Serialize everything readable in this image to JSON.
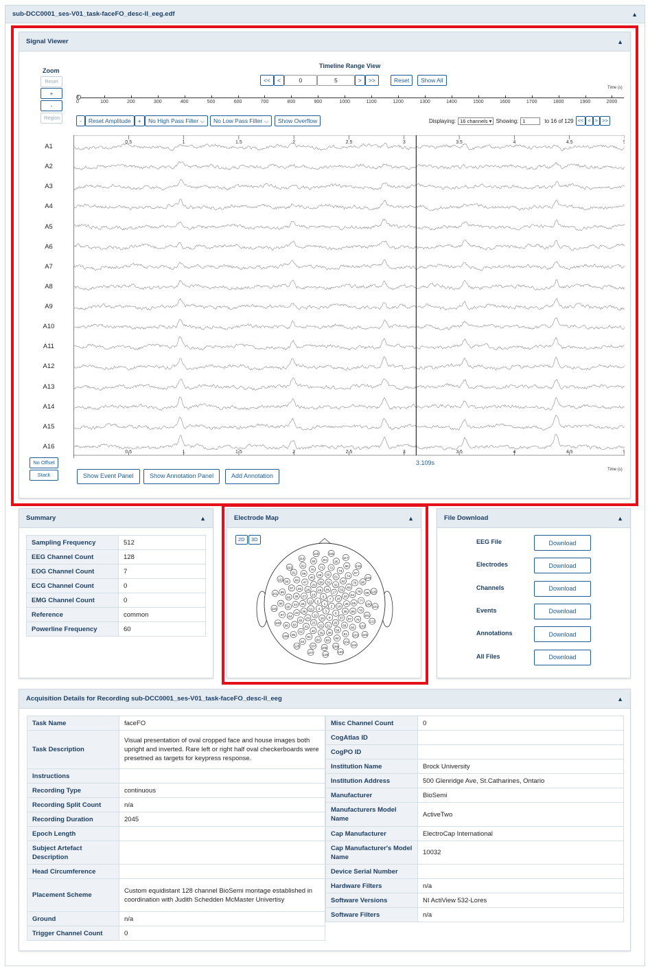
{
  "file_title": "sub-DCC0001_ses-V01_task-faceFO_desc-ll_eeg.edf",
  "signal_viewer": {
    "title": "Signal Viewer",
    "zoom": {
      "label": "Zoom",
      "reset": "Reset",
      "plus": "+",
      "minus": "-",
      "region": "Region"
    },
    "timeline": {
      "label": "Timeline Range View",
      "first": "<<",
      "prev": "<",
      "start": "0",
      "end": "5",
      "next": ">",
      "last": ">>",
      "reset": "Reset",
      "show_all": "Show All",
      "axis_label": "Time (s)",
      "ticks": [
        "0",
        "100",
        "200",
        "300",
        "400",
        "500",
        "600",
        "700",
        "800",
        "900",
        "1000",
        "1100",
        "1200",
        "1300",
        "1400",
        "1500",
        "1600",
        "1700",
        "1800",
        "1900",
        "2000"
      ]
    },
    "controls": {
      "amp_minus": "-",
      "reset_amplitude": "Reset Amplitude",
      "amp_plus": "+",
      "high_pass": "No High Pass Filter",
      "low_pass": "No Low Pass Filter",
      "overflow": "Show Overflow",
      "displaying_label": "Displaying:",
      "displaying_value": "16 channels",
      "showing_label": "Showing:",
      "showing_value": "1",
      "showing_suffix": "to 16 of 129",
      "nav": [
        "<<",
        "<",
        ">",
        ">>"
      ]
    },
    "channels": [
      "A1",
      "A2",
      "A3",
      "A4",
      "A5",
      "A6",
      "A7",
      "A8",
      "A9",
      "A10",
      "A11",
      "A12",
      "A13",
      "A14",
      "A15",
      "A16"
    ],
    "time_ticks": [
      "0.5",
      "1",
      "1.5",
      "2",
      "2.5",
      "3",
      "3.5",
      "4",
      "4.5",
      "5"
    ],
    "cursor_time": "3.109s",
    "time_axis_label": "Time (s)",
    "no_offset": "No Offset",
    "stack": "Stack",
    "buttons": {
      "event": "Show Event Panel",
      "annotation": "Show Annotation Panel",
      "add": "Add Annotation"
    }
  },
  "summary": {
    "title": "Summary",
    "rows": [
      {
        "k": "Sampling Frequency",
        "v": "512"
      },
      {
        "k": "EEG Channel Count",
        "v": "128"
      },
      {
        "k": "EOG Channel Count",
        "v": "7"
      },
      {
        "k": "ECG Channel Count",
        "v": "0"
      },
      {
        "k": "EMG Channel Count",
        "v": "0"
      },
      {
        "k": "Reference",
        "v": "common"
      },
      {
        "k": "Powerline Frequency",
        "v": "60"
      }
    ]
  },
  "electrode_map": {
    "title": "Electrode Map",
    "btn_2d": "2D",
    "btn_3d": "3D"
  },
  "file_download": {
    "title": "File Download",
    "download_label": "Download",
    "items": [
      "EEG File",
      "Electrodes",
      "Channels",
      "Events",
      "Annotations",
      "All Files"
    ]
  },
  "acquisition": {
    "title": "Acquisition Details for Recording sub-DCC0001_ses-V01_task-faceFO_desc-ll_eeg",
    "left": [
      {
        "k": "Task Name",
        "v": "faceFO"
      },
      {
        "k": "Task Description",
        "v": "Visual presentation of oval cropped face and house images both upright and inverted. Rare left or right half oval checkerboards were presetned as targets for keypress response."
      },
      {
        "k": "Instructions",
        "v": ""
      },
      {
        "k": "Recording Type",
        "v": "continuous"
      },
      {
        "k": "Recording Split Count",
        "v": "n/a"
      },
      {
        "k": "Recording Duration",
        "v": "2045"
      },
      {
        "k": "Epoch Length",
        "v": ""
      },
      {
        "k": "Subject Artefact Description",
        "v": ""
      },
      {
        "k": "Head Circumference",
        "v": ""
      },
      {
        "k": "Placement Scheme",
        "v": "Custom equidistant 128 channel BioSemi montage established in coordination with Judith Schedden McMaster Univertisy"
      },
      {
        "k": "Ground",
        "v": "n/a"
      },
      {
        "k": "Trigger Channel Count",
        "v": "0"
      }
    ],
    "right": [
      {
        "k": "Misc Channel Count",
        "v": "0"
      },
      {
        "k": "CogAtlas ID",
        "v": ""
      },
      {
        "k": "CogPO ID",
        "v": ""
      },
      {
        "k": "Institution Name",
        "v": "Brock University"
      },
      {
        "k": "Institution Address",
        "v": "500 Glenridge Ave, St.Catharines, Ontario"
      },
      {
        "k": "Manufacturer",
        "v": "BioSemi"
      },
      {
        "k": "Manufacturers Model Name",
        "v": "ActiveTwo"
      },
      {
        "k": "Cap Manufacturer",
        "v": "ElectroCap International"
      },
      {
        "k": "Cap Manufacturer's Model Name",
        "v": "10032"
      },
      {
        "k": "Device Serial Number",
        "v": ""
      },
      {
        "k": "Hardware Filters",
        "v": "n/a"
      },
      {
        "k": "Software Versions",
        "v": "NI ActiView 532-Lores"
      },
      {
        "k": "Software Filters",
        "v": "n/a"
      }
    ]
  },
  "colors": {
    "accent": "#1d5c99",
    "header_bg": "#e4ebf1",
    "highlight": "#e3101b",
    "trace": "#9a9a9a"
  }
}
